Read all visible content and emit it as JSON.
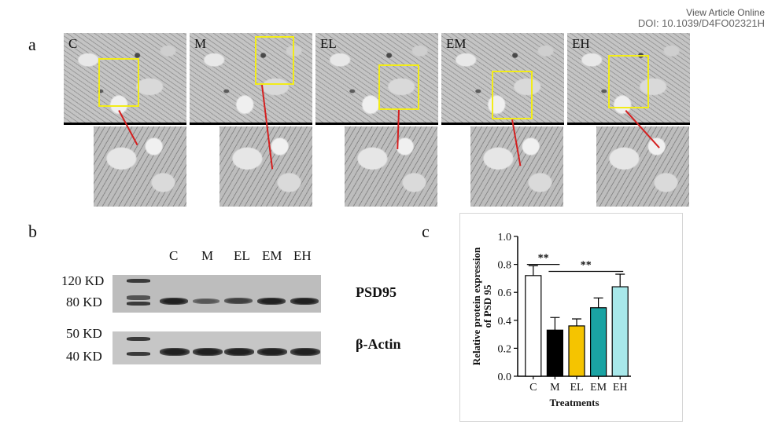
{
  "header": {
    "view_article": "View Article Online",
    "doi": "DOI: 10.1039/D4FO02321H"
  },
  "panel_a": {
    "letter": "a",
    "tiles": [
      {
        "label": "C"
      },
      {
        "label": "M"
      },
      {
        "label": "EL"
      },
      {
        "label": "EM"
      },
      {
        "label": "EH"
      }
    ]
  },
  "panel_b": {
    "letter": "b",
    "lanes": [
      "C",
      "M",
      "EL",
      "EM",
      "EH"
    ],
    "blot_top": {
      "protein": "PSD95",
      "markers": [
        "120 KD",
        "80 KD"
      ],
      "band_intensity": [
        0.85,
        0.55,
        0.7,
        0.8,
        0.8
      ]
    },
    "blot_bottom": {
      "protein": "β-Actin",
      "markers": [
        "50 KD",
        "40 KD"
      ],
      "band_intensity": [
        0.9,
        0.9,
        0.9,
        0.9,
        0.9
      ]
    }
  },
  "panel_c": {
    "letter": "c"
  },
  "chart_data": {
    "type": "bar",
    "categories": [
      "C",
      "M",
      "EL",
      "EM",
      "EH"
    ],
    "values": [
      0.72,
      0.33,
      0.36,
      0.49,
      0.64
    ],
    "errors": [
      0.07,
      0.09,
      0.05,
      0.07,
      0.09
    ],
    "bar_colors": [
      "#ffffff",
      "#000000",
      "#f5c400",
      "#1aa3a3",
      "#a8e8ea"
    ],
    "title": "",
    "xlabel": "Treatments",
    "ylabel_line1": "Relative protein expression",
    "ylabel_line2": "of PSD 95",
    "ylim": [
      0,
      1.0
    ],
    "yticks": [
      "0.0",
      "0.2",
      "0.4",
      "0.6",
      "0.8",
      "1.0"
    ],
    "ytick_values": [
      0,
      0.2,
      0.4,
      0.6,
      0.8,
      1.0
    ],
    "significance": [
      {
        "from": 0,
        "to": 1,
        "label": "**",
        "y": 0.8
      },
      {
        "from": 1,
        "to": 4,
        "label": "**",
        "y": 0.75
      }
    ],
    "grid": false,
    "legend": "none"
  }
}
